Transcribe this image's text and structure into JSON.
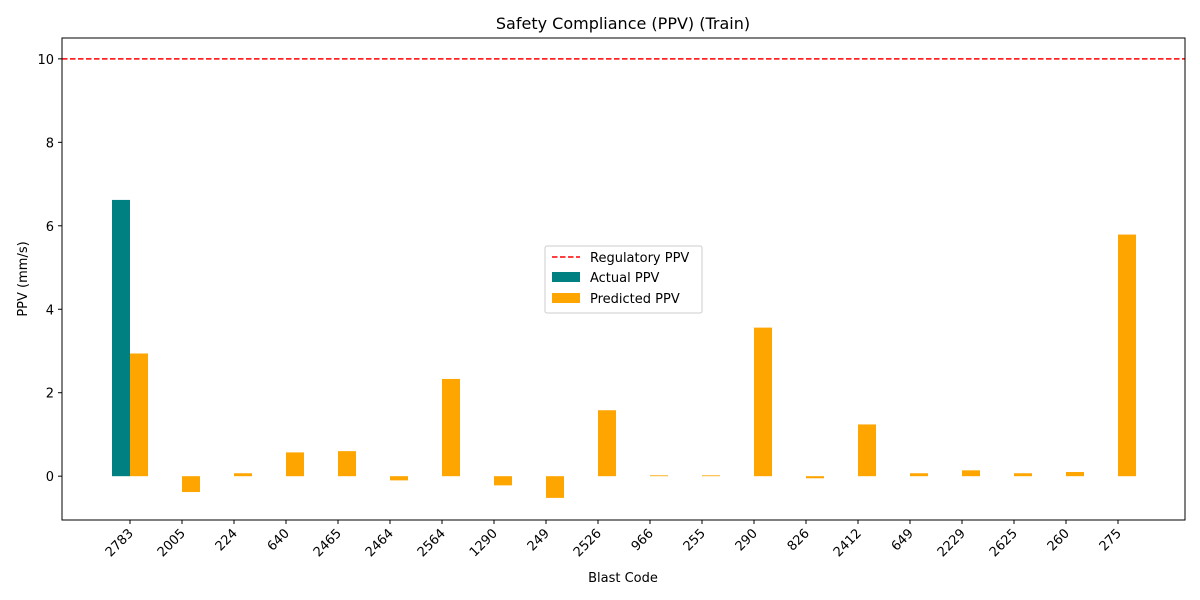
{
  "chart_data": {
    "type": "bar",
    "title": "Safety Compliance (PPV) (Train)",
    "xlabel": "Blast Code",
    "ylabel": "PPV (mm/s)",
    "ylim": [
      -1.05,
      10.5
    ],
    "yticks": [
      0,
      2,
      4,
      6,
      8,
      10
    ],
    "categories": [
      "2783",
      "2005",
      "224",
      "640",
      "2465",
      "2464",
      "2564",
      "1290",
      "249",
      "2526",
      "966",
      "255",
      "290",
      "826",
      "2412",
      "649",
      "2229",
      "2625",
      "260",
      "275"
    ],
    "series": [
      {
        "name": "Actual PPV",
        "color": "#008080",
        "values": [
          6.62,
          null,
          null,
          null,
          null,
          null,
          null,
          null,
          null,
          null,
          null,
          null,
          null,
          null,
          null,
          null,
          null,
          null,
          null,
          null
        ]
      },
      {
        "name": "Predicted PPV",
        "color": "#FFA500",
        "values": [
          2.94,
          -0.38,
          0.07,
          0.57,
          0.6,
          -0.1,
          2.33,
          -0.22,
          -0.52,
          1.58,
          0.02,
          0.02,
          3.56,
          -0.05,
          1.24,
          0.07,
          0.14,
          0.07,
          0.1,
          5.79
        ]
      }
    ],
    "reference_line": {
      "name": "Regulatory PPV",
      "value": 10,
      "color": "#FF0000",
      "style": "dashed"
    },
    "legend_position": "center-right",
    "grid": false
  }
}
